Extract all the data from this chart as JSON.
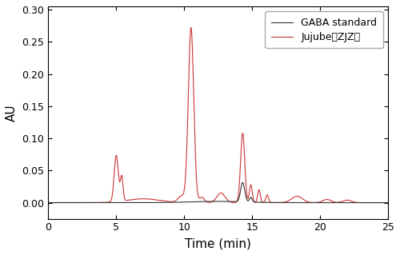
{
  "title": "",
  "xlabel": "Time (min)",
  "ylabel": "AU",
  "xlim": [
    0,
    25
  ],
  "ylim": [
    -0.025,
    0.305
  ],
  "yticks": [
    0.0,
    0.05,
    0.1,
    0.15,
    0.2,
    0.25,
    0.3
  ],
  "xticks": [
    0,
    5,
    10,
    15,
    20,
    25
  ],
  "legend_entries": [
    "GABA standard",
    "Jujube（ZJZ）"
  ],
  "gaba_color": "#333333",
  "jujube_color": "#cc3333",
  "background": "#ffffff",
  "legend_frameon": true,
  "figsize": [
    5.0,
    3.19
  ],
  "dpi": 100
}
